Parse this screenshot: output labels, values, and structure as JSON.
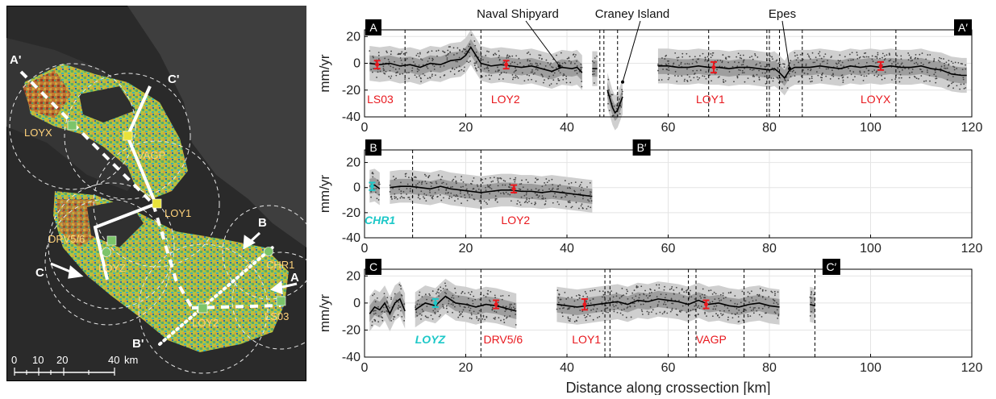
{
  "map": {
    "profile_letters": {
      "a": "A",
      "b": "B",
      "c": "C"
    },
    "profile_ends": {
      "a_end": "A'",
      "b_end": "B'",
      "c_end": "C'"
    },
    "stations": [
      "LOYX",
      "VAGP",
      "LOY1",
      "DRV5/6",
      "LOYZ",
      "LOY2",
      "LS03",
      "CHR1"
    ],
    "scalebar": {
      "ticks": [
        "0",
        "10",
        "20",
        "40"
      ],
      "unit": "km"
    }
  },
  "colors": {
    "dark_land": "#2b2b2b",
    "water": "#3d3d3d",
    "insar_yellow": "#c8c83a",
    "insar_green": "#5aaa6a",
    "insar_cyan": "#3cb4b4",
    "insar_orange": "#d2782e",
    "gps_red": "#e8181e",
    "gps_cyan": "#1ec8c8",
    "station_label": "#ffd27a"
  },
  "chart_data": [
    {
      "type": "line",
      "panel": "A",
      "end_label": "A′",
      "ylabel": "mm/yr",
      "xlim": [
        0,
        120
      ],
      "ylim": [
        -40,
        25
      ],
      "xticks": [
        0,
        20,
        40,
        60,
        80,
        100,
        120
      ],
      "yticks": [
        -40,
        -20,
        0,
        20
      ],
      "grid": true,
      "profile_x": [
        1,
        3,
        5,
        7,
        9,
        11,
        13,
        15,
        17,
        19,
        20,
        21,
        22,
        23,
        25,
        27,
        29,
        31,
        33,
        35,
        37,
        39,
        41,
        42,
        43,
        44,
        45,
        46,
        47,
        48,
        49,
        49.5,
        50,
        50.5,
        51,
        52,
        58,
        60,
        62,
        64,
        66,
        68,
        70,
        72,
        74,
        76,
        78,
        80,
        81,
        82,
        83,
        84,
        85,
        86,
        88,
        90,
        92,
        94,
        96,
        98,
        100,
        102,
        104,
        106,
        108,
        110,
        112,
        114,
        116,
        118,
        119
      ],
      "profile_y": [
        0,
        -1,
        0,
        -2,
        -1,
        -3,
        0,
        -1,
        2,
        3,
        6,
        12,
        6,
        0,
        -2,
        -1,
        -2,
        -3,
        -2,
        -4,
        -6,
        -3,
        -4,
        -3,
        -7,
        null,
        -4,
        -4,
        null,
        -20,
        -33,
        -37,
        -35,
        -30,
        -25,
        null,
        -2,
        -2,
        -3,
        -3,
        -2,
        -3,
        -3,
        -4,
        -3,
        -3,
        -4,
        -5,
        -4,
        -7,
        -11,
        -5,
        -3,
        -3,
        -3,
        -2,
        -3,
        -4,
        -2,
        -3,
        -2,
        -3,
        -2,
        -3,
        -3,
        -2,
        -4,
        -5,
        -8,
        -9,
        -9
      ],
      "gps": [
        {
          "name": "LS03",
          "x": 2.5,
          "y": -1,
          "err": 3,
          "color": "red"
        },
        {
          "name": "LOY2",
          "x": 28,
          "y": -1,
          "err": 3,
          "color": "red"
        },
        {
          "name": "LOY1",
          "x": 69,
          "y": -3,
          "err": 4,
          "color": "red"
        },
        {
          "name": "LOYX",
          "x": 102,
          "y": -2,
          "err": 3,
          "color": "red"
        }
      ],
      "station_labels": [
        {
          "text": "LS03",
          "x": 0.5
        },
        {
          "text": "LOY2",
          "x": 25
        },
        {
          "text": "LOY1",
          "x": 65.5
        },
        {
          "text": "LOYX",
          "x": 98
        }
      ],
      "dashed_lines": [
        8,
        23,
        46.5,
        47.3,
        50,
        68,
        79.5,
        80,
        82,
        86.5,
        105
      ],
      "annotations": [
        {
          "text": "Naval Shipyard",
          "x": 37
        },
        {
          "text": "Craney Island",
          "x": 50
        },
        {
          "text": "Epes",
          "x": 83
        }
      ]
    },
    {
      "type": "line",
      "panel": "B",
      "end_label": "B′",
      "ylabel": "mm/yr",
      "xlim": [
        0,
        120
      ],
      "ylim": [
        -40,
        30
      ],
      "xticks": [
        0,
        20,
        40,
        60,
        80,
        100,
        120
      ],
      "yticks": [
        -40,
        -20,
        0,
        20
      ],
      "grid": true,
      "profile_x": [
        1,
        2,
        3,
        null,
        5,
        7,
        9,
        11,
        13,
        15,
        17,
        19,
        21,
        23,
        25,
        27,
        29,
        31,
        33,
        35,
        37,
        39,
        41,
        43,
        45
      ],
      "profile_y": [
        1,
        2,
        -1,
        null,
        0,
        1,
        1,
        0,
        -1,
        1,
        -1,
        -2,
        -3,
        -4,
        -3,
        -2,
        -2,
        -3,
        -3,
        -4,
        -3,
        -4,
        -5,
        -6,
        -7
      ],
      "gps": [
        {
          "name": "CHR1",
          "x": 1.5,
          "y": 1,
          "err": 3,
          "color": "cyan"
        },
        {
          "name": "LOY2",
          "x": 29.5,
          "y": -1,
          "err": 3,
          "color": "red"
        }
      ],
      "station_labels": [
        {
          "text": "CHR1",
          "x": 0,
          "italic": true,
          "color": "cyan"
        },
        {
          "text": "LOY2",
          "x": 27,
          "color": "red"
        }
      ],
      "dashed_lines": [
        9.5,
        23
      ],
      "annotations": []
    },
    {
      "type": "line",
      "panel": "C",
      "end_label": "C′",
      "ylabel": "mm/yr",
      "xlabel": "Distance along crossection [km]",
      "xlim": [
        0,
        120
      ],
      "ylim": [
        -40,
        25
      ],
      "xticks": [
        0,
        20,
        40,
        60,
        80,
        100,
        120
      ],
      "yticks": [
        -40,
        -20,
        0,
        20
      ],
      "grid": true,
      "profile_x": [
        1,
        2,
        3,
        4,
        5,
        6,
        7,
        8,
        null,
        10,
        12,
        14,
        16,
        18,
        20,
        22,
        24,
        26,
        28,
        30,
        null,
        38,
        40,
        42,
        44,
        46,
        48,
        50,
        52,
        54,
        56,
        58,
        60,
        62,
        64,
        66,
        68,
        70,
        72,
        74,
        76,
        78,
        80,
        82,
        null,
        88,
        89
      ],
      "profile_y": [
        -8,
        -3,
        -5,
        0,
        -8,
        0,
        3,
        -6,
        null,
        -5,
        0,
        -2,
        5,
        0,
        -1,
        -3,
        -1,
        -2,
        -4,
        -6,
        null,
        -1,
        -2,
        -3,
        -2,
        -1,
        0,
        1,
        -1,
        2,
        1,
        3,
        2,
        1,
        -1,
        2,
        -1,
        0,
        -2,
        -3,
        -1,
        0,
        -2,
        -3,
        null,
        -1,
        -2
      ],
      "gps": [
        {
          "name": "LOYZ",
          "x": 14,
          "y": 0,
          "err": 3,
          "color": "cyan"
        },
        {
          "name": "DRV5/6",
          "x": 26,
          "y": -1,
          "err": 3,
          "color": "red"
        },
        {
          "name": "LOY1",
          "x": 43.5,
          "y": -1,
          "err": 4,
          "color": "red"
        },
        {
          "name": "VAGP",
          "x": 67.5,
          "y": -1,
          "err": 3,
          "color": "red"
        }
      ],
      "station_labels": [
        {
          "text": "LOYZ",
          "x": 10,
          "italic": true,
          "color": "cyan"
        },
        {
          "text": "DRV5/6",
          "x": 23.5,
          "color": "red"
        },
        {
          "text": "LOY1",
          "x": 41,
          "color": "red"
        },
        {
          "text": "VAGP",
          "x": 65.5,
          "color": "red"
        }
      ],
      "dashed_lines": [
        23,
        47.5,
        48.5,
        64,
        65.5,
        75,
        89
      ],
      "annotations": []
    }
  ]
}
